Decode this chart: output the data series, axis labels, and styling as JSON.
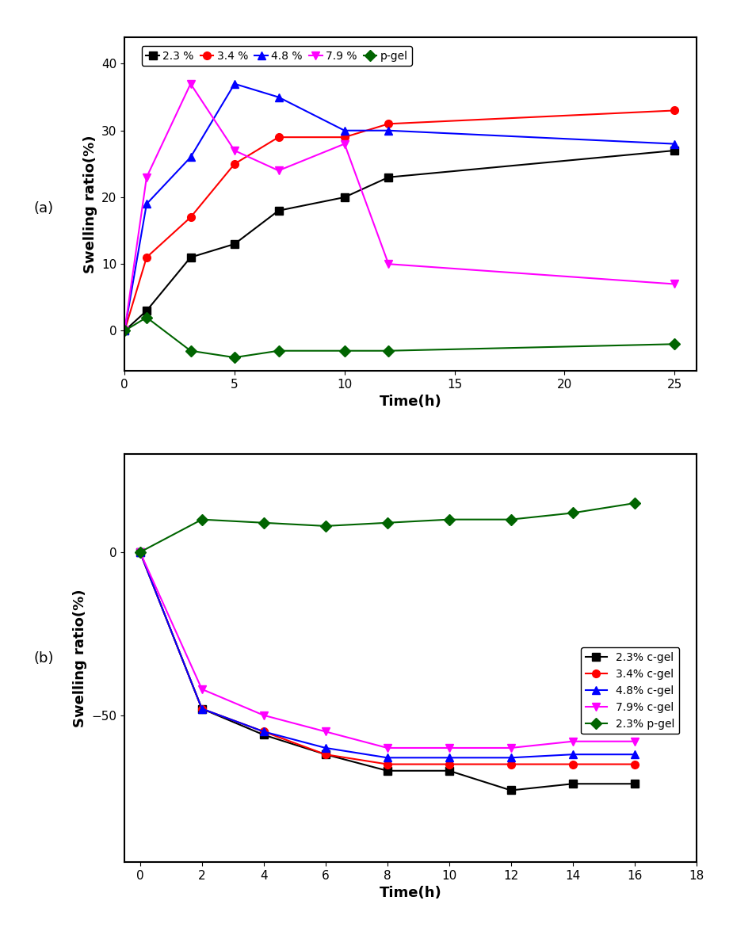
{
  "plot_a": {
    "xlabel": "Time(h)",
    "ylabel": "Swelling ratio(%)",
    "xlim": [
      0,
      26
    ],
    "ylim": [
      -6,
      44
    ],
    "xticks": [
      0,
      5,
      10,
      15,
      20,
      25
    ],
    "yticks": [
      0,
      10,
      20,
      30,
      40
    ],
    "series": [
      {
        "label": "2.3 %",
        "color": "black",
        "marker": "s",
        "x": [
          0,
          1,
          3,
          5,
          7,
          10,
          12,
          25
        ],
        "y": [
          0,
          3,
          11,
          13,
          18,
          20,
          23,
          27
        ]
      },
      {
        "label": "3.4 %",
        "color": "red",
        "marker": "o",
        "x": [
          0,
          1,
          3,
          5,
          7,
          10,
          12,
          25
        ],
        "y": [
          0,
          11,
          17,
          25,
          29,
          29,
          31,
          33
        ]
      },
      {
        "label": "4.8 %",
        "color": "blue",
        "marker": "^",
        "x": [
          0,
          1,
          3,
          5,
          7,
          10,
          12,
          25
        ],
        "y": [
          0,
          19,
          26,
          37,
          35,
          30,
          30,
          28
        ]
      },
      {
        "label": "7.9 %",
        "color": "magenta",
        "marker": "v",
        "x": [
          0,
          1,
          3,
          5,
          7,
          10,
          12,
          25
        ],
        "y": [
          0,
          23,
          37,
          27,
          24,
          28,
          10,
          7
        ]
      },
      {
        "label": "p-gel",
        "color": "#006400",
        "marker": "D",
        "x": [
          0,
          1,
          3,
          5,
          7,
          10,
          12,
          25
        ],
        "y": [
          0,
          2,
          -3,
          -4,
          -3,
          -3,
          -3,
          -2
        ]
      }
    ]
  },
  "plot_b": {
    "xlabel": "Time(h)",
    "ylabel": "Swelling ratio(%)",
    "xlim": [
      -0.5,
      18
    ],
    "ylim": [
      -95,
      30
    ],
    "xticks": [
      0,
      2,
      4,
      6,
      8,
      10,
      12,
      14,
      16,
      18
    ],
    "yticks": [
      -50,
      0
    ],
    "series": [
      {
        "label": "2.3% c-gel",
        "color": "black",
        "marker": "s",
        "x": [
          0,
          2,
          4,
          6,
          8,
          10,
          12,
          14,
          16
        ],
        "y": [
          0,
          -48,
          -56,
          -62,
          -67,
          -67,
          -73,
          -71,
          -71
        ]
      },
      {
        "label": "3.4% c-gel",
        "color": "red",
        "marker": "o",
        "x": [
          0,
          2,
          4,
          6,
          8,
          10,
          12,
          14,
          16
        ],
        "y": [
          0,
          -48,
          -55,
          -62,
          -65,
          -65,
          -65,
          -65,
          -65
        ]
      },
      {
        "label": "4.8% c-gel",
        "color": "blue",
        "marker": "^",
        "x": [
          0,
          2,
          4,
          6,
          8,
          10,
          12,
          14,
          16
        ],
        "y": [
          0,
          -48,
          -55,
          -60,
          -63,
          -63,
          -63,
          -62,
          -62
        ]
      },
      {
        "label": "7.9% c-gel",
        "color": "magenta",
        "marker": "v",
        "x": [
          0,
          2,
          4,
          6,
          8,
          10,
          12,
          14,
          16
        ],
        "y": [
          0,
          -42,
          -50,
          -55,
          -60,
          -60,
          -60,
          -58,
          -58
        ]
      },
      {
        "label": "2.3% p-gel",
        "color": "#006400",
        "marker": "D",
        "x": [
          0,
          2,
          4,
          6,
          8,
          10,
          12,
          14,
          16
        ],
        "y": [
          0,
          10,
          9,
          8,
          9,
          10,
          10,
          12,
          15
        ]
      }
    ]
  },
  "label_a": "(a)",
  "label_b": "(b)",
  "background_color": "white",
  "markersize": 7,
  "linewidth": 1.5
}
